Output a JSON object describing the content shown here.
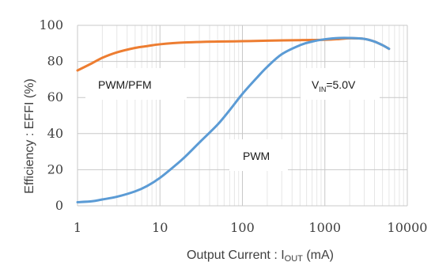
{
  "chart_data": {
    "type": "line",
    "xlabel": "Output Current : I",
    "xlabel_sub": "OUT",
    "xlabel_suffix": " (mA)",
    "ylabel": "Efficiency : EFFI (%)",
    "xscale": "log",
    "xlim": [
      1,
      10000
    ],
    "ylim": [
      0,
      100
    ],
    "xticks": [
      1,
      10,
      100,
      1000,
      10000
    ],
    "xtick_labels": [
      "1",
      "10",
      "100",
      "1000",
      "10000"
    ],
    "yticks": [
      0,
      20,
      40,
      60,
      80,
      100
    ],
    "ytick_labels": [
      "0",
      "20",
      "40",
      "60",
      "80",
      "100"
    ],
    "grid": true,
    "series": [
      {
        "color": "#ED7D31",
        "x": [
          1,
          1.5,
          2,
          3,
          5,
          7,
          10,
          20,
          50,
          100,
          200,
          500,
          1000,
          1500,
          2000,
          3000,
          4000,
          5000,
          6000
        ],
        "y": [
          75,
          79,
          82,
          85,
          87.5,
          88.5,
          89.5,
          90.5,
          91,
          91.2,
          91.5,
          91.8,
          92,
          92.4,
          92.8,
          92.5,
          91,
          89,
          87
        ]
      },
      {
        "color": "#5B9BD5",
        "x": [
          1,
          1.5,
          2,
          3,
          5,
          7,
          10,
          15,
          20,
          30,
          50,
          70,
          100,
          150,
          200,
          300,
          500,
          700,
          1000,
          1500,
          2000,
          3000,
          4000,
          5000,
          6000
        ],
        "y": [
          2,
          2.5,
          3.5,
          5,
          8,
          11,
          15.5,
          22,
          27,
          35,
          45,
          53,
          62,
          71,
          77,
          84,
          89,
          91,
          92.3,
          93,
          93,
          92.5,
          91,
          89,
          87
        ]
      }
    ],
    "annotations": [
      {
        "text": "PWM/PFM"
      },
      {
        "text": "V",
        "sub": "IN",
        "suffix": "=5.0V"
      },
      {
        "text": "PWM"
      }
    ]
  }
}
